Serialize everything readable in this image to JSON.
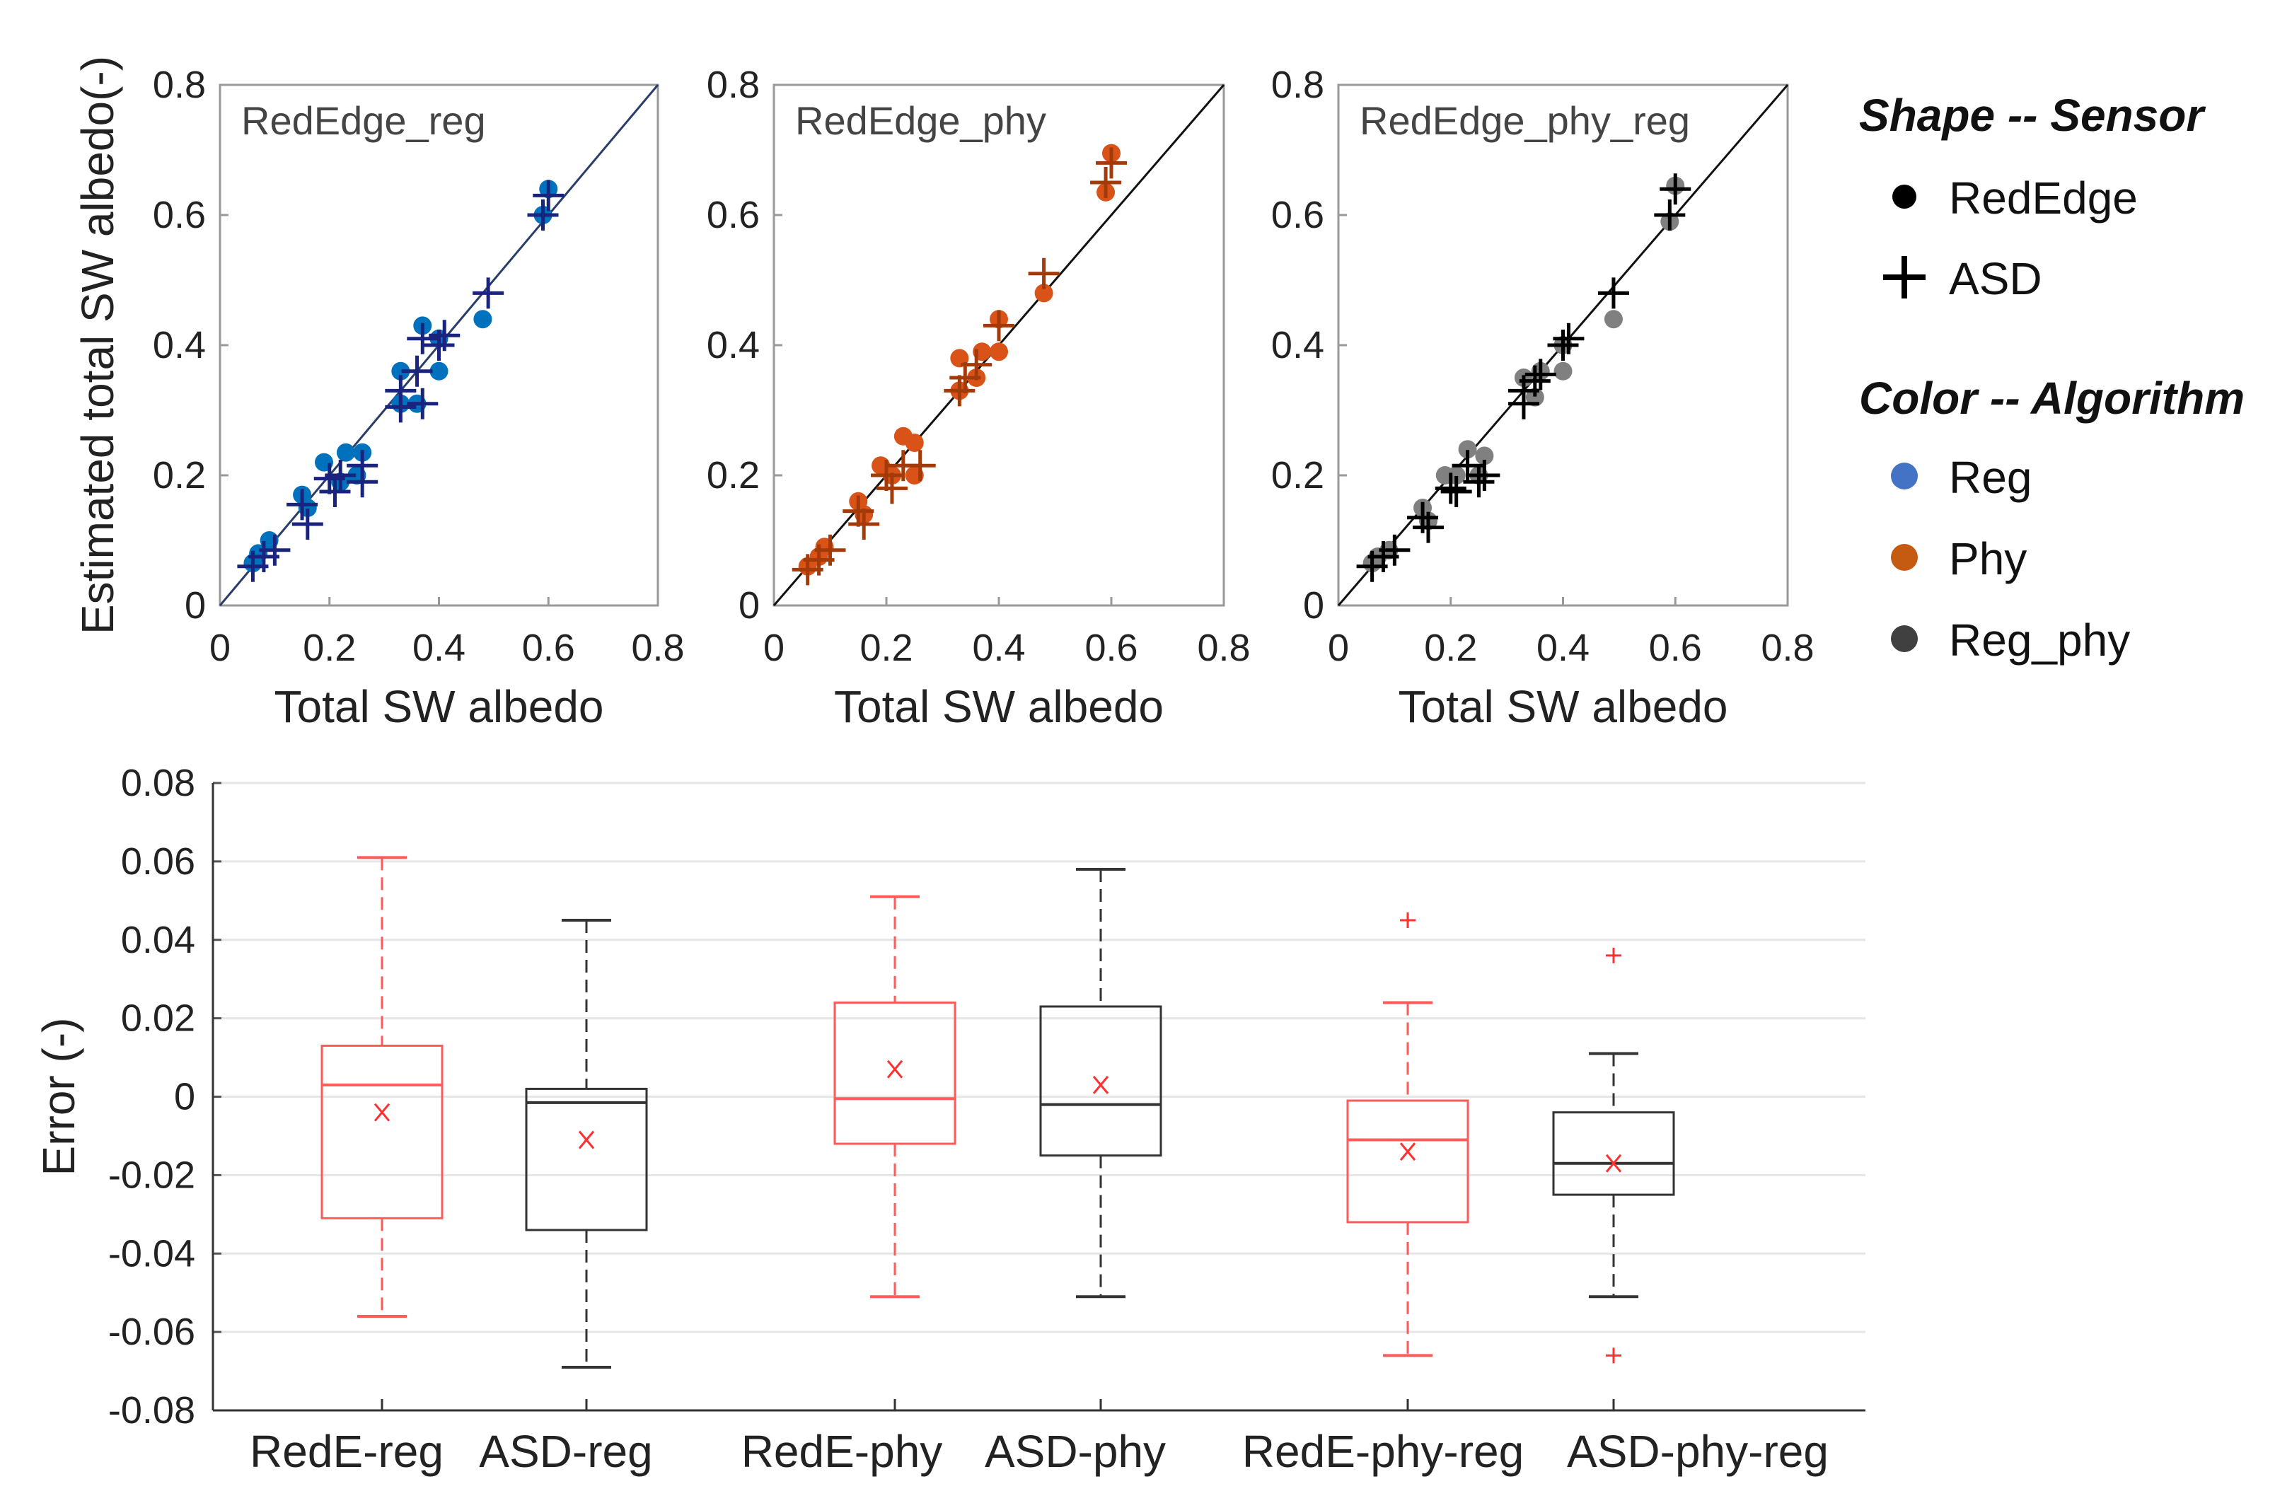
{
  "colors": {
    "reg": "#0072BD",
    "reg_cross": "#1a237e",
    "phy": "#D95319",
    "phy_cross": "#A33A0A",
    "regphy": "#808080",
    "regphy_cross": "#000000",
    "box_red": "#FF5A5A",
    "box_black": "#333333",
    "legend_reg": "#4472C4",
    "legend_phy": "#C55A11",
    "legend_regphy": "#404040"
  },
  "chart_data": [
    {
      "type": "scatter",
      "title": "RedEdge_reg",
      "xlabel": "Total SW albedo",
      "ylabel": "Estimated total SW albedo(-)",
      "xlim": [
        0,
        0.8
      ],
      "ylim": [
        0,
        0.8
      ],
      "xticks": [
        "0",
        "0.2",
        "0.4",
        "0.6",
        "0.8"
      ],
      "yticks": [
        "0",
        "0.2",
        "0.4",
        "0.6",
        "0.8"
      ],
      "color": "reg",
      "series": [
        {
          "name": "RedEdge",
          "marker": "circle",
          "points": [
            [
              0.06,
              0.065
            ],
            [
              0.07,
              0.08
            ],
            [
              0.09,
              0.1
            ],
            [
              0.15,
              0.17
            ],
            [
              0.16,
              0.15
            ],
            [
              0.19,
              0.22
            ],
            [
              0.22,
              0.19
            ],
            [
              0.23,
              0.235
            ],
            [
              0.25,
              0.2
            ],
            [
              0.26,
              0.235
            ],
            [
              0.33,
              0.36
            ],
            [
              0.33,
              0.31
            ],
            [
              0.36,
              0.31
            ],
            [
              0.37,
              0.43
            ],
            [
              0.4,
              0.36
            ],
            [
              0.4,
              0.41
            ],
            [
              0.48,
              0.44
            ],
            [
              0.59,
              0.6
            ],
            [
              0.6,
              0.64
            ]
          ]
        },
        {
          "name": "ASD",
          "marker": "cross",
          "points": [
            [
              0.06,
              0.06
            ],
            [
              0.08,
              0.075
            ],
            [
              0.1,
              0.085
            ],
            [
              0.15,
              0.155
            ],
            [
              0.16,
              0.125
            ],
            [
              0.2,
              0.195
            ],
            [
              0.21,
              0.175
            ],
            [
              0.22,
              0.2
            ],
            [
              0.26,
              0.215
            ],
            [
              0.26,
              0.19
            ],
            [
              0.33,
              0.33
            ],
            [
              0.33,
              0.305
            ],
            [
              0.36,
              0.36
            ],
            [
              0.37,
              0.31
            ],
            [
              0.37,
              0.41
            ],
            [
              0.4,
              0.4
            ],
            [
              0.41,
              0.415
            ],
            [
              0.49,
              0.48
            ],
            [
              0.59,
              0.6
            ],
            [
              0.6,
              0.63
            ]
          ]
        }
      ]
    },
    {
      "type": "scatter",
      "title": "RedEdge_phy",
      "xlabel": "Total SW albedo",
      "ylabel": "",
      "xlim": [
        0,
        0.8
      ],
      "ylim": [
        0,
        0.8
      ],
      "xticks": [
        "0",
        "0.2",
        "0.4",
        "0.6",
        "0.8"
      ],
      "yticks": [
        "0",
        "0.2",
        "0.4",
        "0.6",
        "0.8"
      ],
      "color": "phy",
      "series": [
        {
          "name": "RedEdge",
          "marker": "circle",
          "points": [
            [
              0.06,
              0.06
            ],
            [
              0.08,
              0.075
            ],
            [
              0.09,
              0.09
            ],
            [
              0.15,
              0.16
            ],
            [
              0.16,
              0.14
            ],
            [
              0.19,
              0.215
            ],
            [
              0.21,
              0.2
            ],
            [
              0.23,
              0.26
            ],
            [
              0.25,
              0.25
            ],
            [
              0.25,
              0.2
            ],
            [
              0.33,
              0.38
            ],
            [
              0.33,
              0.33
            ],
            [
              0.36,
              0.35
            ],
            [
              0.37,
              0.39
            ],
            [
              0.4,
              0.39
            ],
            [
              0.4,
              0.44
            ],
            [
              0.48,
              0.48
            ],
            [
              0.59,
              0.635
            ],
            [
              0.6,
              0.695
            ]
          ]
        },
        {
          "name": "ASD",
          "marker": "cross",
          "points": [
            [
              0.06,
              0.055
            ],
            [
              0.08,
              0.07
            ],
            [
              0.1,
              0.085
            ],
            [
              0.15,
              0.145
            ],
            [
              0.16,
              0.125
            ],
            [
              0.2,
              0.2
            ],
            [
              0.21,
              0.18
            ],
            [
              0.23,
              0.215
            ],
            [
              0.26,
              0.215
            ],
            [
              0.33,
              0.33
            ],
            [
              0.34,
              0.35
            ],
            [
              0.36,
              0.37
            ],
            [
              0.4,
              0.43
            ],
            [
              0.48,
              0.51
            ],
            [
              0.59,
              0.65
            ],
            [
              0.6,
              0.68
            ]
          ]
        }
      ]
    },
    {
      "type": "scatter",
      "title": "RedEdge_phy_reg",
      "xlabel": "Total SW albedo",
      "ylabel": "",
      "xlim": [
        0,
        0.8
      ],
      "ylim": [
        0,
        0.8
      ],
      "xticks": [
        "0",
        "0.2",
        "0.4",
        "0.6",
        "0.8"
      ],
      "yticks": [
        "0",
        "0.2",
        "0.4",
        "0.6",
        "0.8"
      ],
      "color": "regphy",
      "series": [
        {
          "name": "RedEdge",
          "marker": "circle",
          "points": [
            [
              0.06,
              0.065
            ],
            [
              0.07,
              0.075
            ],
            [
              0.09,
              0.085
            ],
            [
              0.15,
              0.15
            ],
            [
              0.16,
              0.13
            ],
            [
              0.19,
              0.2
            ],
            [
              0.21,
              0.2
            ],
            [
              0.23,
              0.24
            ],
            [
              0.25,
              0.2
            ],
            [
              0.26,
              0.23
            ],
            [
              0.33,
              0.35
            ],
            [
              0.35,
              0.32
            ],
            [
              0.36,
              0.36
            ],
            [
              0.4,
              0.36
            ],
            [
              0.4,
              0.4
            ],
            [
              0.49,
              0.44
            ],
            [
              0.59,
              0.59
            ],
            [
              0.6,
              0.645
            ]
          ]
        },
        {
          "name": "ASD",
          "marker": "cross",
          "points": [
            [
              0.06,
              0.06
            ],
            [
              0.08,
              0.075
            ],
            [
              0.1,
              0.085
            ],
            [
              0.15,
              0.135
            ],
            [
              0.16,
              0.12
            ],
            [
              0.2,
              0.18
            ],
            [
              0.21,
              0.175
            ],
            [
              0.23,
              0.215
            ],
            [
              0.25,
              0.19
            ],
            [
              0.26,
              0.2
            ],
            [
              0.33,
              0.33
            ],
            [
              0.33,
              0.31
            ],
            [
              0.35,
              0.345
            ],
            [
              0.36,
              0.355
            ],
            [
              0.4,
              0.4
            ],
            [
              0.41,
              0.41
            ],
            [
              0.49,
              0.48
            ],
            [
              0.59,
              0.6
            ],
            [
              0.6,
              0.64
            ]
          ]
        }
      ]
    },
    {
      "type": "box",
      "title": "",
      "xlabel": "",
      "ylabel": "Error (-)",
      "ylim": [
        -0.08,
        0.08
      ],
      "grid": true,
      "yticks": [
        "-0.08",
        "-0.06",
        "-0.04",
        "-0.02",
        "0",
        "0.02",
        "0.04",
        "0.06",
        "0.08"
      ],
      "categories": [
        "RedE-reg",
        "ASD-reg",
        "RedE-phy",
        "ASD-phy",
        "RedE-phy-reg",
        "ASD-phy-reg"
      ],
      "boxes": [
        {
          "color": "red",
          "whisker_low": -0.056,
          "q1": -0.031,
          "median": 0.003,
          "q3": 0.013,
          "whisker_high": 0.061,
          "mean": -0.004,
          "outliers": []
        },
        {
          "color": "black",
          "whisker_low": -0.069,
          "q1": -0.034,
          "median": -0.0015,
          "q3": 0.002,
          "whisker_high": 0.045,
          "mean": -0.011,
          "outliers": []
        },
        {
          "color": "red",
          "whisker_low": -0.051,
          "q1": -0.012,
          "median": -0.0005,
          "q3": 0.024,
          "whisker_high": 0.051,
          "mean": 0.007,
          "outliers": []
        },
        {
          "color": "black",
          "whisker_low": -0.051,
          "q1": -0.015,
          "median": -0.002,
          "q3": 0.023,
          "whisker_high": 0.058,
          "mean": 0.003,
          "outliers": []
        },
        {
          "color": "red",
          "whisker_low": -0.066,
          "q1": -0.032,
          "median": -0.011,
          "q3": -0.001,
          "whisker_high": 0.024,
          "mean": -0.014,
          "outliers": [
            0.045
          ]
        },
        {
          "color": "black",
          "whisker_low": -0.051,
          "q1": -0.025,
          "median": -0.017,
          "q3": -0.004,
          "whisker_high": 0.011,
          "mean": -0.017,
          "outliers": [
            0.036,
            -0.066
          ]
        }
      ]
    }
  ],
  "legend": {
    "shape_title": "Shape -- Sensor",
    "shape_items": [
      {
        "label": "RedEdge",
        "marker": "circle"
      },
      {
        "label": "ASD",
        "marker": "cross"
      }
    ],
    "color_title": "Color -- Algorithm",
    "color_items": [
      {
        "label": "Reg",
        "color": "legend_reg"
      },
      {
        "label": "Phy",
        "color": "legend_phy"
      },
      {
        "label": "Reg_phy",
        "color": "legend_regphy"
      }
    ]
  }
}
